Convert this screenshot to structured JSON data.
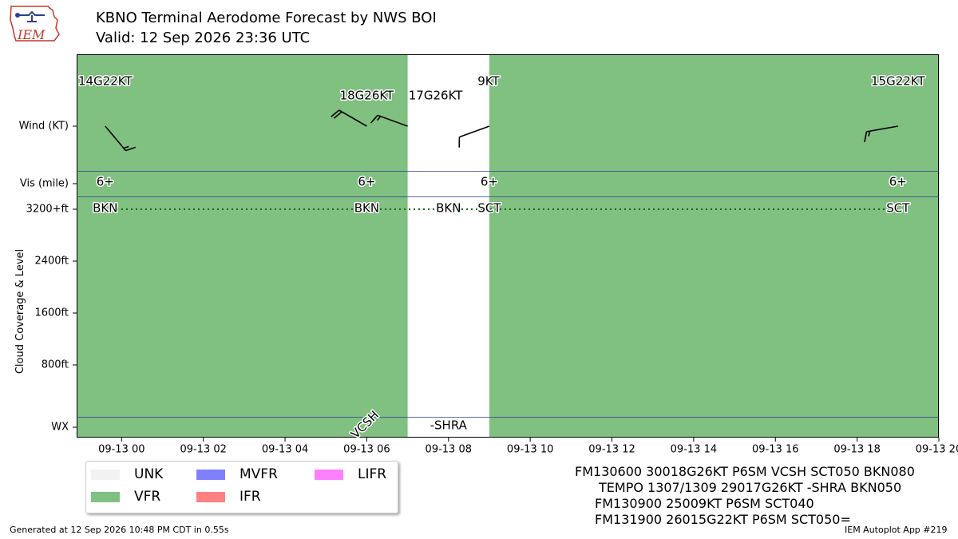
{
  "header": {
    "title": "KBNO Terminal Aerodome Forecast by NWS BOI",
    "subtitle": "Valid: 12 Sep 2026 23:36 UTC"
  },
  "logo": {
    "text": "IEM"
  },
  "chart_data": {
    "type": "timeline",
    "x_range": [
      "2026-09-12 22:54",
      "2026-09-13 20:00"
    ],
    "x_ticks": [
      "09-13 00",
      "09-13 02",
      "09-13 04",
      "09-13 06",
      "09-13 08",
      "09-13 10",
      "09-13 12",
      "09-13 14",
      "09-13 16",
      "09-13 18",
      "09-13 20"
    ],
    "y_label": "Cloud Coverage & Level",
    "row_labels": {
      "wind": "Wind (KT)",
      "vis": "Vis (mile)",
      "wx": "WX"
    },
    "cloud_ticks": [
      "3200+ft",
      "2400ft",
      "1600ft",
      "800ft"
    ],
    "category_colors": {
      "UNK": "#EEEEEE",
      "VFR": "#00800080",
      "MVFR": "#0000FF80",
      "IFR": "#FF000080",
      "LIFR": "#FF00FF80"
    },
    "category_periods": [
      {
        "start": "2026-09-12 22:54",
        "end": "2026-09-13 07:00",
        "category": "VFR"
      },
      {
        "start": "2026-09-13 07:00",
        "end": "2026-09-13 09:00",
        "category": "none"
      },
      {
        "start": "2026-09-13 09:00",
        "end": "2026-09-13 20:00",
        "category": "VFR"
      }
    ],
    "wind": [
      {
        "time": "2026-09-12 23:36",
        "label": "14G22KT",
        "dir": 140,
        "speed": 14,
        "gust": 22
      },
      {
        "time": "2026-09-13 06:00",
        "label": "18G26KT",
        "dir": 300,
        "speed": 18,
        "gust": 26
      },
      {
        "time": "2026-09-13 07:00",
        "label": "17G26KT",
        "dir": 290,
        "speed": 17,
        "gust": 26
      },
      {
        "time": "2026-09-13 09:00",
        "label": "9KT",
        "dir": 250,
        "speed": 9
      },
      {
        "time": "2026-09-13 19:00",
        "label": "15G22KT",
        "dir": 260,
        "speed": 15,
        "gust": 22
      }
    ],
    "visibility": [
      {
        "time": "2026-09-12 23:36",
        "label": "6+"
      },
      {
        "time": "2026-09-13 06:00",
        "label": "6+"
      },
      {
        "time": "2026-09-13 09:00",
        "label": "6+"
      },
      {
        "time": "2026-09-13 19:00",
        "label": "6+"
      }
    ],
    "clouds": [
      {
        "time": "2026-09-12 23:36",
        "cover": "BKN",
        "level": "3200+ft"
      },
      {
        "time": "2026-09-13 06:00",
        "cover": "BKN",
        "level": "3200+ft"
      },
      {
        "time": "2026-09-13 08:00",
        "cover": "BKN",
        "level": "3200+ft"
      },
      {
        "time": "2026-09-13 09:00",
        "cover": "SCT",
        "level": "3200+ft"
      },
      {
        "time": "2026-09-13 19:00",
        "cover": "SCT",
        "level": "3200+ft"
      }
    ],
    "weather": [
      {
        "time": "2026-09-13 06:00",
        "label": "VCSH",
        "rotated": true
      },
      {
        "time": "2026-09-13 08:00",
        "label": "-SHRA"
      }
    ]
  },
  "legend": [
    {
      "name": "UNK",
      "color": "#F2F2F2"
    },
    {
      "name": "VFR",
      "color": "#80C080"
    },
    {
      "name": "MVFR",
      "color": "#8080FF"
    },
    {
      "name": "IFR",
      "color": "#FF8080"
    },
    {
      "name": "LIFR",
      "color": "#FF80FF"
    }
  ],
  "taf_text": [
    "FM130600 30018G26KT P6SM VCSH SCT050 BKN080",
    "TEMPO 1307/1309 29017G26KT -SHRA BKN050",
    "FM130900 25009KT P6SM SCT040",
    "FM131900 26015G22KT P6SM SCT050="
  ],
  "footer": {
    "left": "Generated at 12 Sep 2026 10:48 PM CDT in 0.55s",
    "right": "IEM Autoplot App #219"
  }
}
